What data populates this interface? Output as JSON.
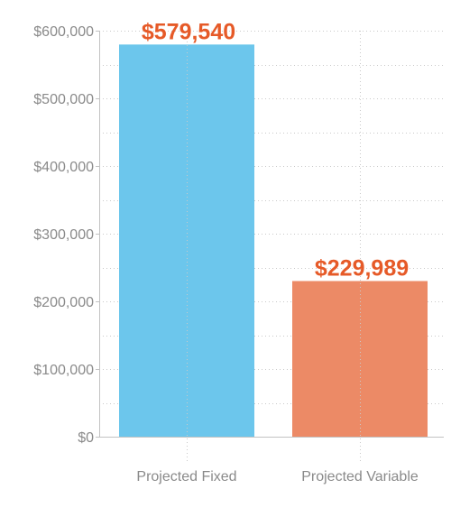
{
  "chart_data": {
    "type": "bar",
    "title": "",
    "xlabel": "",
    "ylabel": "",
    "categories": [
      "Projected Fixed",
      "Projected Variable"
    ],
    "values": [
      579540,
      229989
    ],
    "data_labels": [
      "$579,540",
      "$229,989"
    ],
    "ylim": [
      0,
      600000
    ],
    "y_ticks": [
      0,
      100000,
      200000,
      300000,
      400000,
      500000,
      600000
    ],
    "y_tick_labels": [
      "$0",
      "$100,000",
      "$200,000",
      "$300,000",
      "$400,000",
      "$500,000",
      "$600,000"
    ],
    "bar_colors": [
      "#6cc6ec",
      "#ec8a66"
    ],
    "data_label_color": "#e65a28",
    "grid": true,
    "legend": "none"
  }
}
